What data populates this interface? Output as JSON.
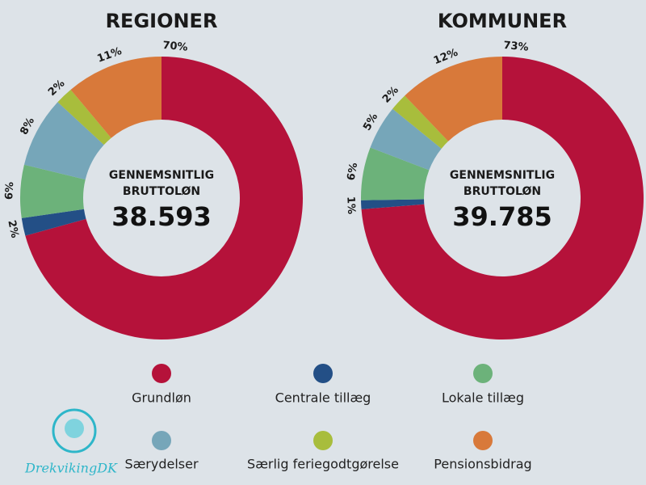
{
  "chart_data": [
    {
      "type": "pie",
      "title": "REGIONER",
      "categories": [
        "Grundløn",
        "Centrale tillæg",
        "Lokale tillæg",
        "Særydelser",
        "Særlig feriegodtgørelse",
        "Pensionsbidrag"
      ],
      "values": [
        70,
        2,
        6,
        8,
        2,
        11
      ],
      "value_labels": [
        "70%",
        "2%",
        "6%",
        "8%",
        "2%",
        "11%"
      ],
      "colors": [
        "#b5123a",
        "#234f86",
        "#6cb27a",
        "#76a6b9",
        "#a8bd3c",
        "#d8793a"
      ],
      "center_label": [
        "GENNEMSNITLIG",
        "BRUTTOLØN"
      ],
      "center_value": "38.593"
    },
    {
      "type": "pie",
      "title": "KOMMUNER",
      "categories": [
        "Grundløn",
        "Centrale tillæg",
        "Lokale tillæg",
        "Særydelser",
        "Særlig feriegodtgørelse",
        "Pensionsbidrag"
      ],
      "values": [
        73,
        1,
        6,
        5,
        2,
        12
      ],
      "value_labels": [
        "73%",
        "1%",
        "6%",
        "5%",
        "2%",
        "12%"
      ],
      "colors": [
        "#b5123a",
        "#234f86",
        "#6cb27a",
        "#76a6b9",
        "#a8bd3c",
        "#d8793a"
      ],
      "center_label": [
        "GENNEMSNITLIG",
        "BRUTTOLØN"
      ],
      "center_value": "39.785"
    }
  ],
  "watermark": "DrekvikingDK"
}
